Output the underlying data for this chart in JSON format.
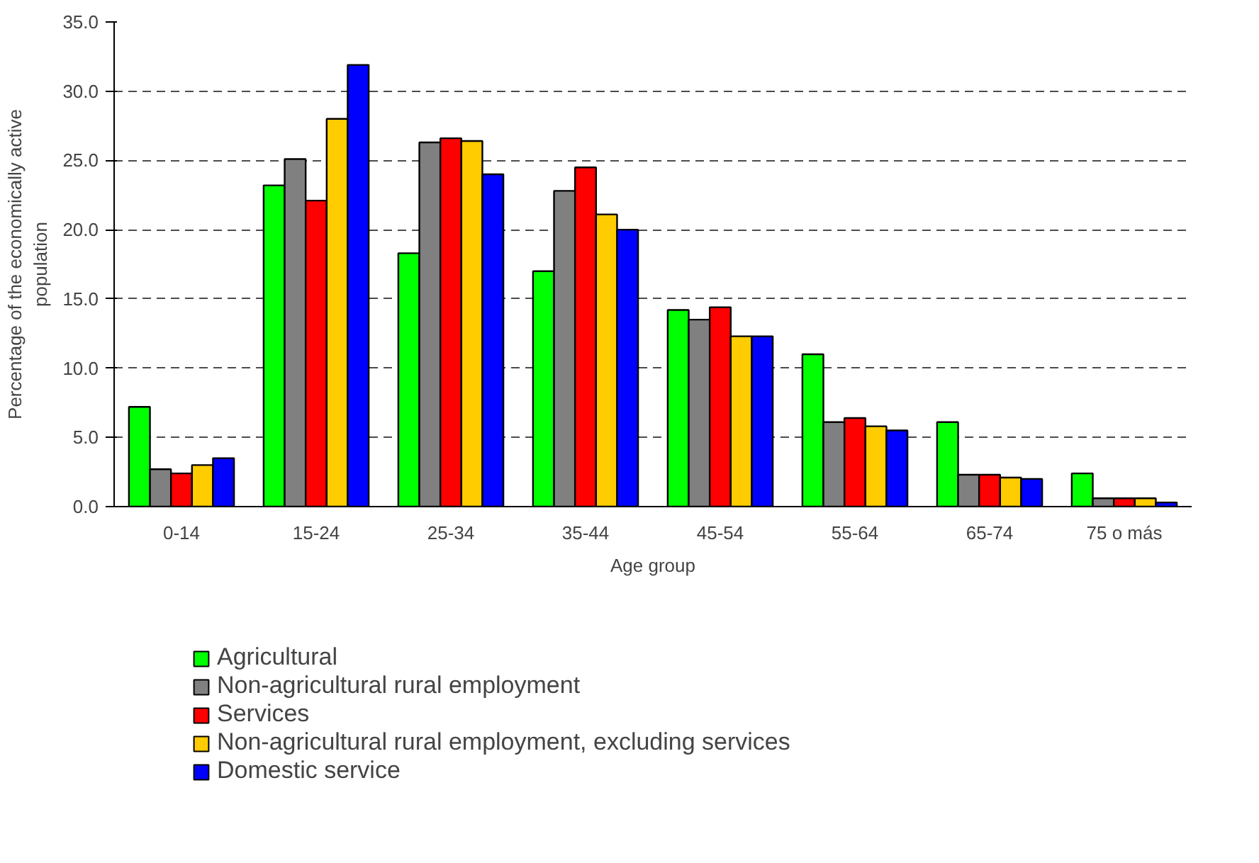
{
  "chart_data": {
    "type": "bar",
    "xlabel": "Age group",
    "ylabel": "Percentage of the economically active\npopulation",
    "categories": [
      "0-14",
      "15-24",
      "25-34",
      "35-44",
      "45-54",
      "55-64",
      "65-74",
      "75 o más"
    ],
    "series": [
      {
        "name": "Agricultural",
        "color": "#00ff00",
        "values": [
          7.2,
          23.2,
          18.3,
          17.0,
          14.2,
          11.0,
          6.1,
          2.4
        ]
      },
      {
        "name": "Non-agricultural rural employment",
        "color": "#808080",
        "values": [
          2.7,
          25.1,
          26.3,
          22.8,
          13.5,
          6.1,
          2.3,
          0.6
        ]
      },
      {
        "name": "Services",
        "color": "#ff0000",
        "values": [
          2.4,
          22.1,
          26.6,
          24.5,
          14.4,
          6.4,
          2.3,
          0.6
        ]
      },
      {
        "name": "Non-agricultural rural employment, excluding services",
        "color": "#ffcc00",
        "values": [
          3.0,
          28.0,
          26.4,
          21.1,
          12.3,
          5.8,
          2.1,
          0.6
        ]
      },
      {
        "name": "Domestic service",
        "color": "#0000ff",
        "values": [
          3.5,
          31.9,
          24.0,
          20.0,
          12.3,
          5.5,
          2.0,
          0.3
        ]
      }
    ],
    "ylim": [
      0,
      35
    ],
    "yticks": [
      {
        "value": 0,
        "label": "0.0"
      },
      {
        "value": 5,
        "label": "5.0"
      },
      {
        "value": 10,
        "label": "10.0"
      },
      {
        "value": 15,
        "label": "15.0"
      },
      {
        "value": 20,
        "label": "20.0"
      },
      {
        "value": 25,
        "label": "25.0"
      },
      {
        "value": 30,
        "label": "30.0"
      },
      {
        "value": 35,
        "label": "35.0"
      }
    ],
    "grid": "y",
    "legend": "bottom"
  }
}
